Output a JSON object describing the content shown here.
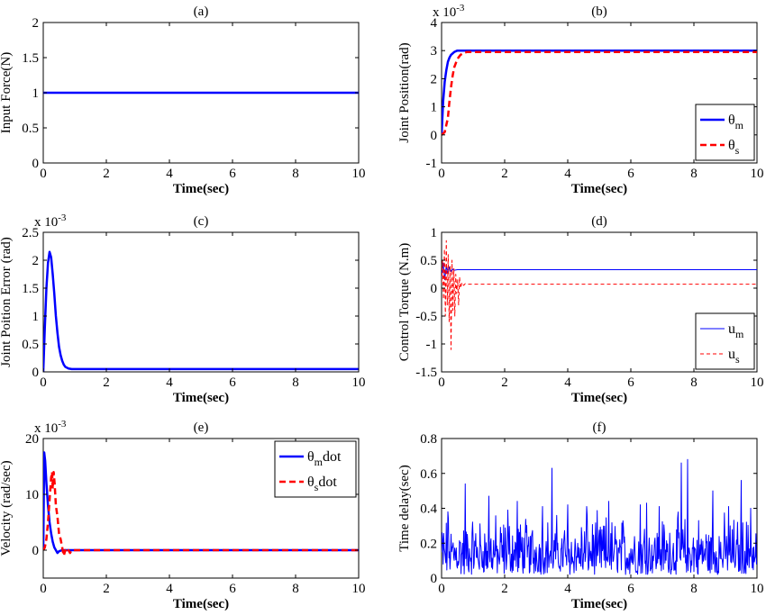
{
  "colors": {
    "blue": "#0000ff",
    "red": "#ff0000"
  },
  "chart_data": [
    {
      "id": "a",
      "type": "line",
      "title": "(a)",
      "xlabel": "Time(sec)",
      "ylabel": "Input Force(N)",
      "exponent": "",
      "xlim": [
        0,
        10
      ],
      "ylim": [
        0,
        2
      ],
      "xticks": [
        0,
        2,
        4,
        6,
        8,
        10
      ],
      "yticks": [
        0,
        0.5,
        1,
        1.5,
        2
      ],
      "grid": false,
      "legend_position": "none",
      "series": [
        {
          "color": "#0000ff",
          "style": "solid",
          "width": 2.5,
          "x": [
            0,
            10
          ],
          "y": [
            1,
            1
          ]
        }
      ]
    },
    {
      "id": "b",
      "type": "line",
      "title": "(b)",
      "xlabel": "Time(sec)",
      "ylabel": "Joint Position(rad)",
      "exponent": "x 10",
      "exponent_power": "-3",
      "xlim": [
        0,
        10
      ],
      "ylim": [
        -1,
        4
      ],
      "xticks": [
        0,
        2,
        4,
        6,
        8,
        10
      ],
      "yticks": [
        -1,
        0,
        1,
        2,
        3,
        4
      ],
      "grid": false,
      "legend_position": "bottom-right",
      "series": [
        {
          "legend_base": "θ",
          "legend_sub": "m",
          "color": "#0000ff",
          "style": "solid",
          "width": 2.5,
          "x": [
            0,
            0.05,
            0.1,
            0.15,
            0.2,
            0.25,
            0.3,
            0.4,
            0.5,
            0.6,
            0.8,
            10
          ],
          "y": [
            0,
            1.2,
            1.9,
            2.3,
            2.6,
            2.75,
            2.85,
            2.95,
            3.0,
            3.0,
            3.0,
            3.0
          ]
        },
        {
          "legend_base": "θ",
          "legend_sub": "s",
          "color": "#ff0000",
          "style": "dashed",
          "width": 2.5,
          "x": [
            0,
            0.1,
            0.2,
            0.25,
            0.3,
            0.35,
            0.4,
            0.5,
            0.6,
            0.7,
            0.8,
            1.0,
            10
          ],
          "y": [
            0,
            0.1,
            0.6,
            1.2,
            1.7,
            2.1,
            2.4,
            2.7,
            2.85,
            2.92,
            2.95,
            2.95,
            2.95
          ]
        }
      ]
    },
    {
      "id": "c",
      "type": "line",
      "title": "(c)",
      "xlabel": "Time(sec)",
      "ylabel": "Joint Poition Error (rad)",
      "exponent": "x 10",
      "exponent_power": "-3",
      "xlim": [
        0,
        10
      ],
      "ylim": [
        0,
        2.5
      ],
      "xticks": [
        0,
        2,
        4,
        6,
        8,
        10
      ],
      "yticks": [
        0,
        0.5,
        1,
        1.5,
        2,
        2.5
      ],
      "grid": false,
      "legend_position": "none",
      "series": [
        {
          "color": "#0000ff",
          "style": "solid",
          "width": 2.5,
          "x": [
            0,
            0.05,
            0.1,
            0.15,
            0.2,
            0.25,
            0.3,
            0.35,
            0.4,
            0.45,
            0.5,
            0.55,
            0.6,
            0.65,
            0.7,
            0.8,
            0.9,
            1.0,
            10
          ],
          "y": [
            0,
            0.8,
            1.5,
            1.95,
            2.15,
            2.05,
            1.75,
            1.4,
            1.0,
            0.7,
            0.45,
            0.3,
            0.2,
            0.13,
            0.09,
            0.06,
            0.05,
            0.05,
            0.05
          ]
        }
      ]
    },
    {
      "id": "d",
      "type": "line",
      "title": "(d)",
      "xlabel": "Time(sec)",
      "ylabel": "Control Torque (N.m)",
      "exponent": "",
      "xlim": [
        0,
        10
      ],
      "ylim": [
        -1.5,
        1
      ],
      "xticks": [
        0,
        2,
        4,
        6,
        8,
        10
      ],
      "yticks": [
        -1.5,
        -1,
        -0.5,
        0,
        0.5,
        1
      ],
      "grid": false,
      "legend_position": "bottom-right",
      "series": [
        {
          "legend_base": "u",
          "legend_sub": "m",
          "color": "#0000ff",
          "style": "solid",
          "width": 1,
          "x": [
            0,
            0.05,
            0.1,
            0.15,
            0.2,
            0.25,
            0.3,
            0.35,
            0.4,
            0.5,
            10
          ],
          "y": [
            0.2,
            0.45,
            0.15,
            0.4,
            0.25,
            0.38,
            0.3,
            0.34,
            0.32,
            0.33,
            0.33
          ]
        },
        {
          "legend_base": "u",
          "legend_sub": "s",
          "color": "#ff0000",
          "style": "dashed",
          "width": 1,
          "x": [
            0,
            0.03,
            0.06,
            0.09,
            0.12,
            0.15,
            0.18,
            0.21,
            0.24,
            0.27,
            0.3,
            0.33,
            0.36,
            0.39,
            0.42,
            0.45,
            0.48,
            0.51,
            0.54,
            0.57,
            0.6,
            0.65,
            0.7,
            0.75,
            0.8,
            10
          ],
          "y": [
            0.1,
            0.5,
            -0.2,
            0.7,
            -0.5,
            0.85,
            -0.3,
            0.6,
            -0.6,
            0.4,
            -1.1,
            0.5,
            -0.4,
            0.35,
            -0.5,
            0.25,
            -0.1,
            0.15,
            -0.3,
            0.2,
            0.0,
            0.1,
            0.05,
            0.08,
            0.07,
            0.07
          ]
        }
      ]
    },
    {
      "id": "e",
      "type": "line",
      "title": "(e)",
      "xlabel": "Time(sec)",
      "ylabel": "Velocity (rad/sec)",
      "exponent": "x 10",
      "exponent_power": "-3",
      "xlim": [
        0,
        10
      ],
      "ylim": [
        -5,
        20
      ],
      "xticks": [
        0,
        2,
        4,
        6,
        8,
        10
      ],
      "yticks": [
        0,
        10,
        20
      ],
      "grid": false,
      "legend_position": "top-right",
      "series": [
        {
          "legend_base": "θ",
          "legend_sub": "m",
          "legend_suffix": "dot",
          "color": "#0000ff",
          "style": "solid",
          "width": 2.5,
          "x": [
            0,
            0.03,
            0.06,
            0.1,
            0.15,
            0.2,
            0.25,
            0.3,
            0.35,
            0.4,
            0.45,
            0.5,
            0.6,
            0.7,
            10
          ],
          "y": [
            0,
            17.5,
            16,
            12,
            8,
            5,
            3,
            1.5,
            0.5,
            0,
            -0.5,
            -0.2,
            0,
            0,
            0
          ]
        },
        {
          "legend_base": "θ",
          "legend_sub": "s",
          "legend_suffix": "dot",
          "color": "#ff0000",
          "style": "dashed",
          "width": 2.5,
          "x": [
            0,
            0.05,
            0.1,
            0.15,
            0.2,
            0.25,
            0.28,
            0.3,
            0.33,
            0.36,
            0.4,
            0.45,
            0.5,
            0.55,
            0.6,
            0.65,
            0.7,
            0.75,
            0.8,
            0.85,
            0.9,
            10
          ],
          "y": [
            0,
            0.5,
            2,
            5,
            9,
            13,
            14,
            11,
            14,
            12,
            8,
            6,
            3,
            2,
            0.5,
            -1,
            0,
            -0.5,
            0,
            -0.5,
            0,
            0
          ]
        }
      ]
    },
    {
      "id": "f",
      "type": "line",
      "title": "(f)",
      "xlabel": "Time(sec)",
      "ylabel": "Time delay(sec)",
      "exponent": "",
      "xlim": [
        0,
        10
      ],
      "ylim": [
        0,
        0.8
      ],
      "xticks": [
        0,
        2,
        4,
        6,
        8,
        10
      ],
      "yticks": [
        0,
        0.2,
        0.4,
        0.6,
        0.8
      ],
      "grid": false,
      "legend_position": "none",
      "series": [
        {
          "color": "#0000ff",
          "style": "solid",
          "width": 1,
          "noise": true,
          "noise_count": 600,
          "noise_min": 0.02,
          "noise_max": 0.4,
          "peaks_x": [
            0.2,
            0.75,
            1.5,
            2.1,
            2.4,
            3.2,
            3.5,
            4.0,
            4.6,
            5.3,
            6.3,
            6.5,
            6.9,
            7.6,
            7.8,
            8.6,
            9.1,
            9.5,
            9.8
          ],
          "peaks_y": [
            0.38,
            0.54,
            0.47,
            0.39,
            0.44,
            0.41,
            0.63,
            0.42,
            0.41,
            0.44,
            0.42,
            0.43,
            0.41,
            0.66,
            0.68,
            0.5,
            0.41,
            0.56,
            0.4
          ]
        }
      ]
    }
  ]
}
